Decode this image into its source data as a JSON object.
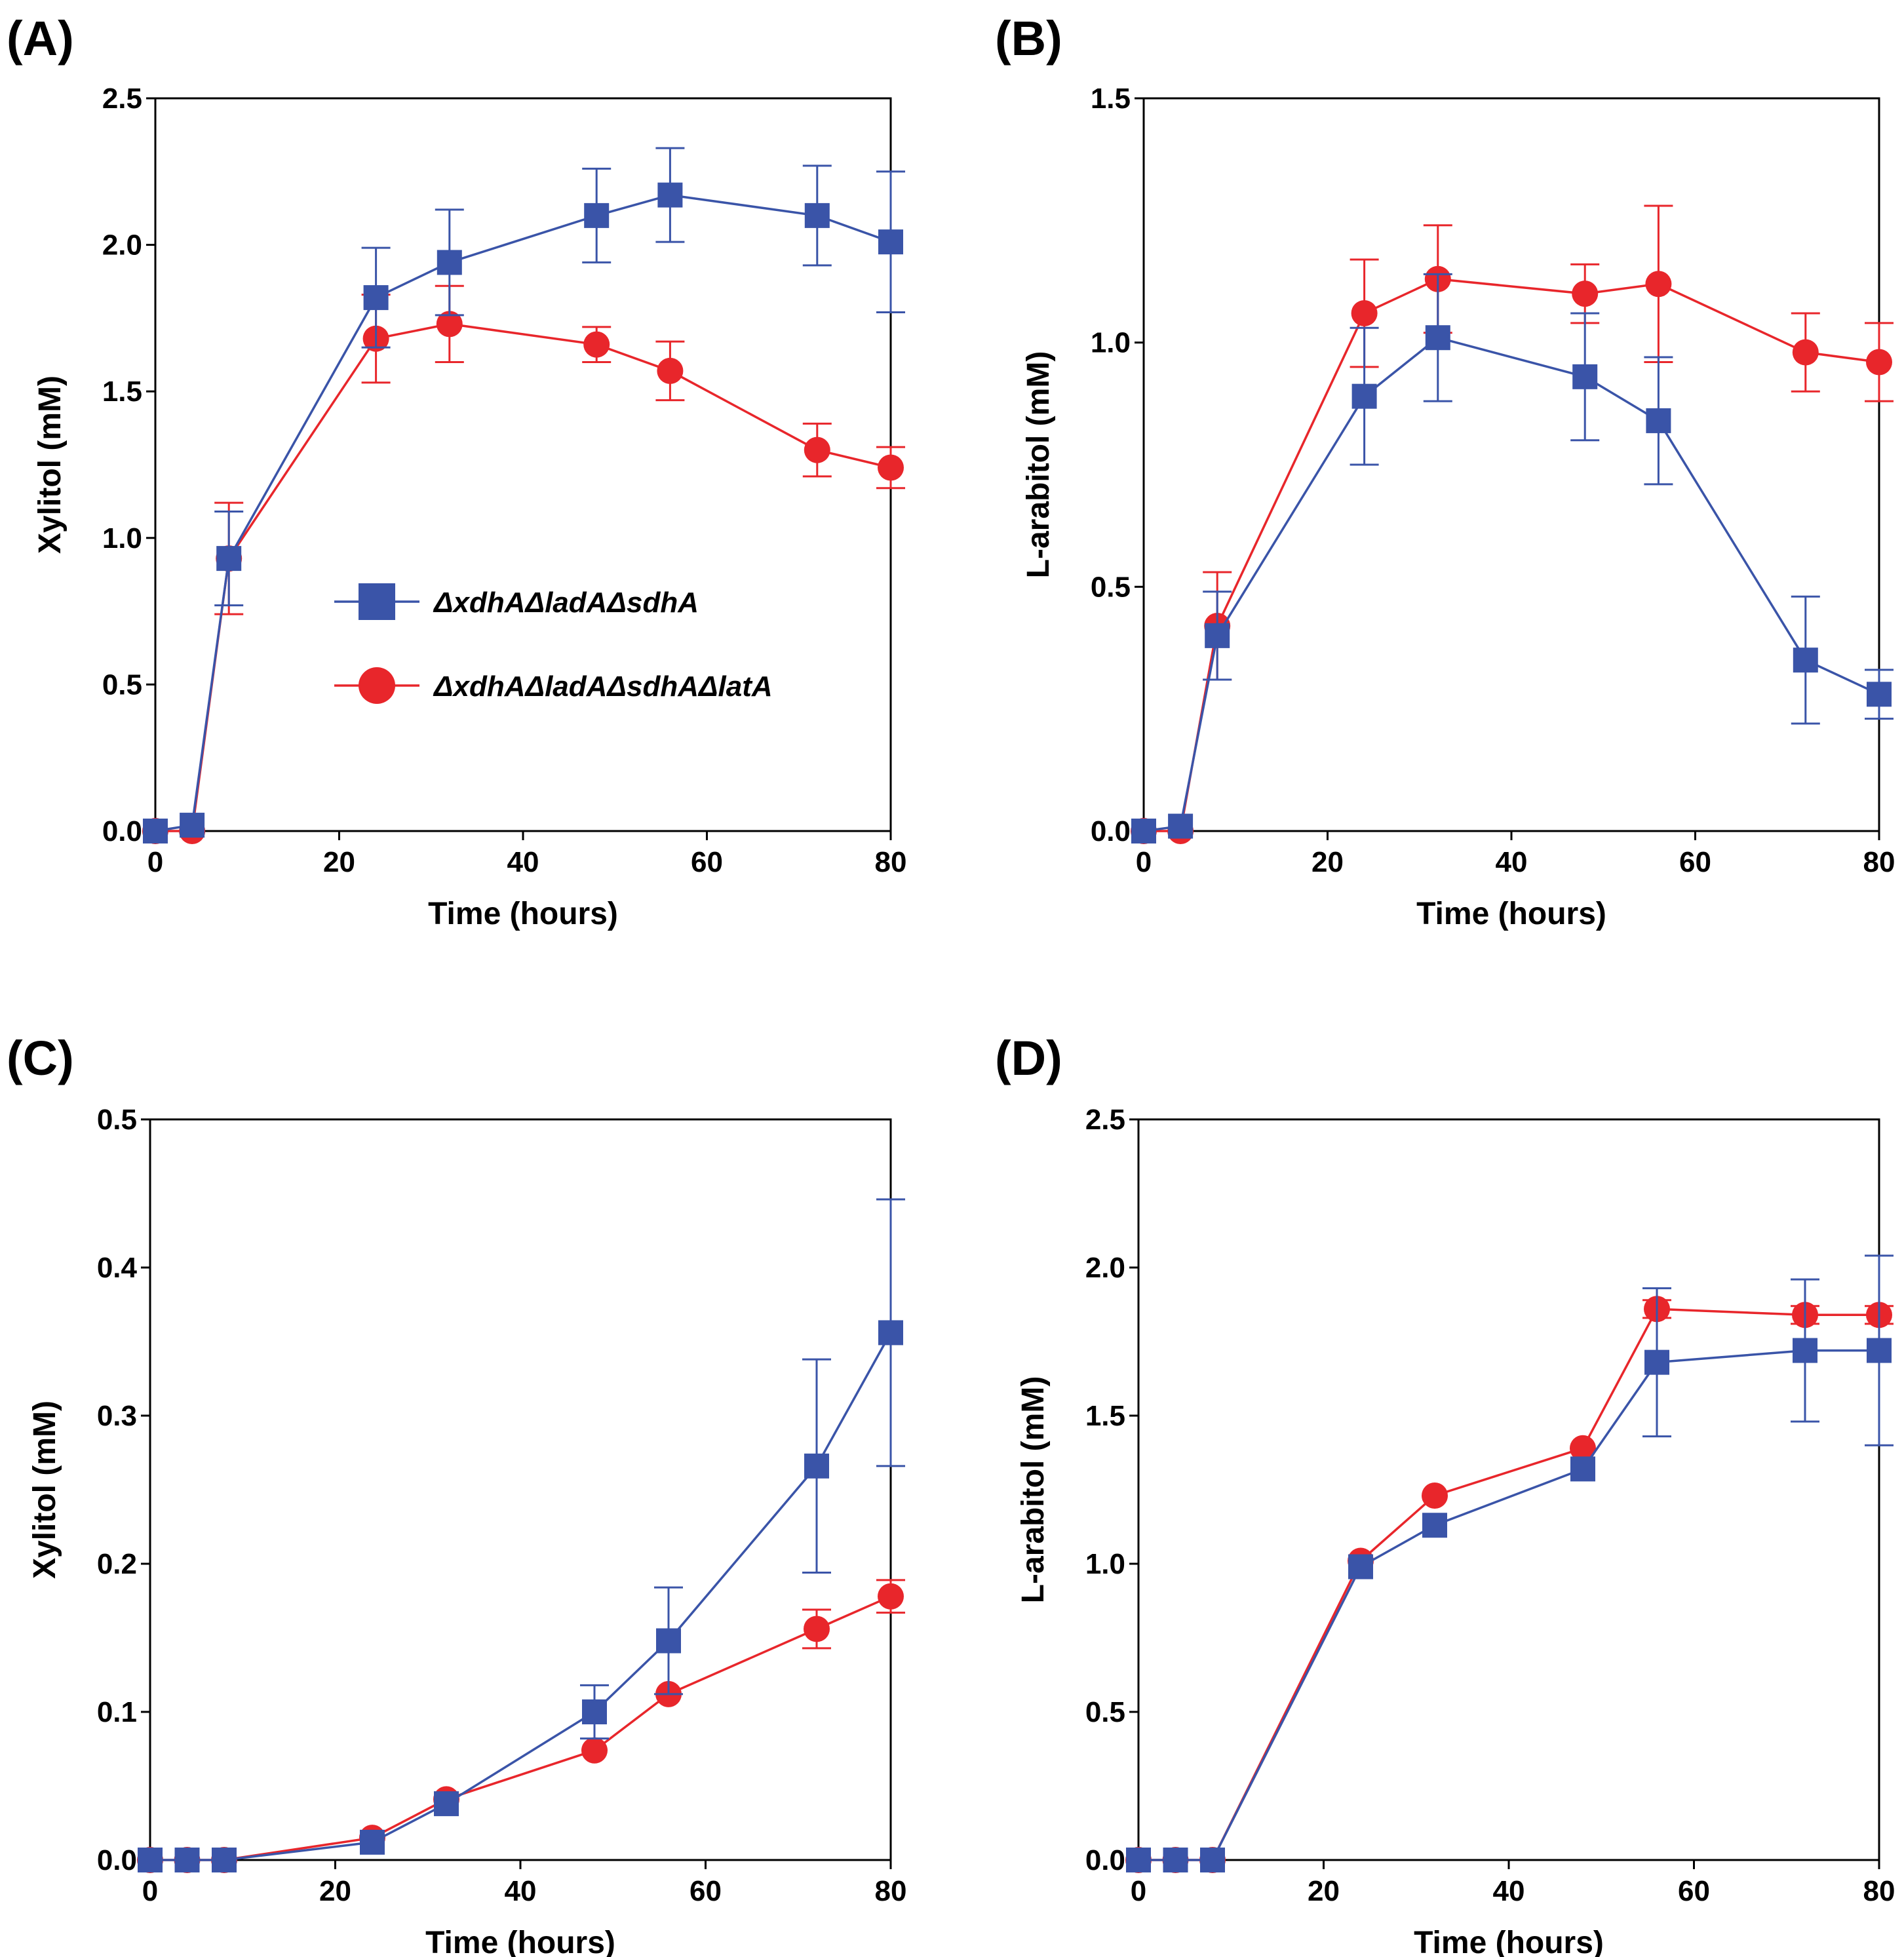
{
  "figure": {
    "colors": {
      "blue": "#3a54a8",
      "red": "#e8262b"
    },
    "legend": {
      "entries": [
        {
          "name": "ΔxdhAΔladAΔsdhA",
          "color": "#3a54a8",
          "marker": "square"
        },
        {
          "name": "ΔxdhAΔladAΔsdhAΔlatA",
          "color": "#e8262b",
          "marker": "circle"
        }
      ],
      "location": "center, inside panel A"
    }
  },
  "chart_data": [
    {
      "panel": "(A)",
      "type": "line",
      "xlabel": "Time (hours)",
      "ylabel": "Xylitol (mM)",
      "xlim": [
        0,
        80
      ],
      "ylim": [
        0,
        2.5
      ],
      "xticks": [
        "0",
        "20",
        "40",
        "60",
        "80"
      ],
      "yticks": [
        "0.0",
        "0.5",
        "1.0",
        "1.5",
        "2.0",
        "2.5"
      ],
      "x": [
        0,
        4,
        8,
        24,
        32,
        48,
        56,
        72,
        80
      ],
      "series": [
        {
          "name": "ΔxdhAΔladAΔsdhA",
          "color": "#3a54a8",
          "marker": "square",
          "values": [
            0,
            0.02,
            0.93,
            1.82,
            1.94,
            2.1,
            2.17,
            2.1,
            2.01
          ],
          "errors": [
            0,
            0,
            0.16,
            0.17,
            0.18,
            0.16,
            0.16,
            0.17,
            0.24
          ]
        },
        {
          "name": "ΔxdhAΔladAΔsdhAΔlatA",
          "color": "#e8262b",
          "marker": "circle",
          "values": [
            0,
            0,
            0.93,
            1.68,
            1.73,
            1.66,
            1.57,
            1.3,
            1.24
          ],
          "errors": [
            0,
            0,
            0.19,
            0.15,
            0.13,
            0.06,
            0.1,
            0.09,
            0.07
          ]
        }
      ]
    },
    {
      "panel": "(B)",
      "type": "line",
      "xlabel": "Time (hours)",
      "ylabel": "L-arabitol (mM)",
      "xlim": [
        0,
        80
      ],
      "ylim": [
        0,
        1.5
      ],
      "xticks": [
        "0",
        "20",
        "40",
        "60",
        "80"
      ],
      "yticks": [
        "0.0",
        "0.5",
        "1.0",
        "1.5"
      ],
      "x": [
        0,
        4,
        8,
        24,
        32,
        48,
        56,
        72,
        80
      ],
      "series": [
        {
          "name": "ΔxdhAΔladAΔsdhA",
          "color": "#3a54a8",
          "marker": "square",
          "values": [
            0,
            0.01,
            0.4,
            0.89,
            1.01,
            0.93,
            0.84,
            0.35,
            0.28
          ],
          "errors": [
            0,
            0,
            0.09,
            0.14,
            0.13,
            0.13,
            0.13,
            0.13,
            0.05
          ]
        },
        {
          "name": "ΔxdhAΔladAΔsdhAΔlatA",
          "color": "#e8262b",
          "marker": "circle",
          "values": [
            0,
            0,
            0.42,
            1.06,
            1.13,
            1.1,
            1.12,
            0.98,
            0.96
          ],
          "errors": [
            0,
            0,
            0.11,
            0.11,
            0.11,
            0.06,
            0.16,
            0.08,
            0.08
          ]
        }
      ]
    },
    {
      "panel": "(C)",
      "type": "line",
      "xlabel": "Time (hours)",
      "ylabel": "Xylitol (mM)",
      "xlim": [
        0,
        80
      ],
      "ylim": [
        0,
        0.5
      ],
      "xticks": [
        "0",
        "20",
        "40",
        "60",
        "80"
      ],
      "yticks": [
        "0.0",
        "0.1",
        "0.2",
        "0.3",
        "0.4",
        "0.5"
      ],
      "x": [
        0,
        4,
        8,
        24,
        32,
        48,
        56,
        72,
        80
      ],
      "series": [
        {
          "name": "ΔxdhAΔladAΔsdhA",
          "color": "#3a54a8",
          "marker": "square",
          "values": [
            0,
            0,
            0,
            0.012,
            0.038,
            0.1,
            0.148,
            0.266,
            0.356
          ],
          "errors": [
            0,
            0,
            0,
            0,
            0,
            0.018,
            0.036,
            0.072,
            0.09
          ]
        },
        {
          "name": "ΔxdhAΔladAΔsdhAΔlatA",
          "color": "#e8262b",
          "marker": "circle",
          "values": [
            0,
            0,
            0,
            0.015,
            0.041,
            0.074,
            0.112,
            0.156,
            0.178
          ],
          "errors": [
            0,
            0,
            0,
            0,
            0,
            0,
            0,
            0.013,
            0.011
          ]
        }
      ]
    },
    {
      "panel": "(D)",
      "type": "line",
      "xlabel": "Time (hours)",
      "ylabel": "L-arabitol (mM)",
      "xlim": [
        0,
        80
      ],
      "ylim": [
        0,
        2.5
      ],
      "xticks": [
        "0",
        "20",
        "40",
        "60",
        "80"
      ],
      "yticks": [
        "0.0",
        "0.5",
        "1.0",
        "1.5",
        "2.0",
        "2.5"
      ],
      "x": [
        0,
        4,
        8,
        24,
        32,
        48,
        56,
        72,
        80
      ],
      "series": [
        {
          "name": "ΔxdhAΔladAΔsdhA",
          "color": "#3a54a8",
          "marker": "square",
          "values": [
            0,
            0,
            0,
            0.99,
            1.13,
            1.32,
            1.68,
            1.72,
            1.72
          ],
          "errors": [
            0,
            0,
            0,
            0,
            0,
            0,
            0.25,
            0.24,
            0.32
          ]
        },
        {
          "name": "ΔxdhAΔladAΔsdhAΔlatA",
          "color": "#e8262b",
          "marker": "circle",
          "values": [
            0,
            0,
            0,
            1.01,
            1.23,
            1.39,
            1.86,
            1.84,
            1.84
          ],
          "errors": [
            0,
            0,
            0,
            0,
            0,
            0,
            0.03,
            0.03,
            0.03
          ]
        }
      ]
    }
  ]
}
